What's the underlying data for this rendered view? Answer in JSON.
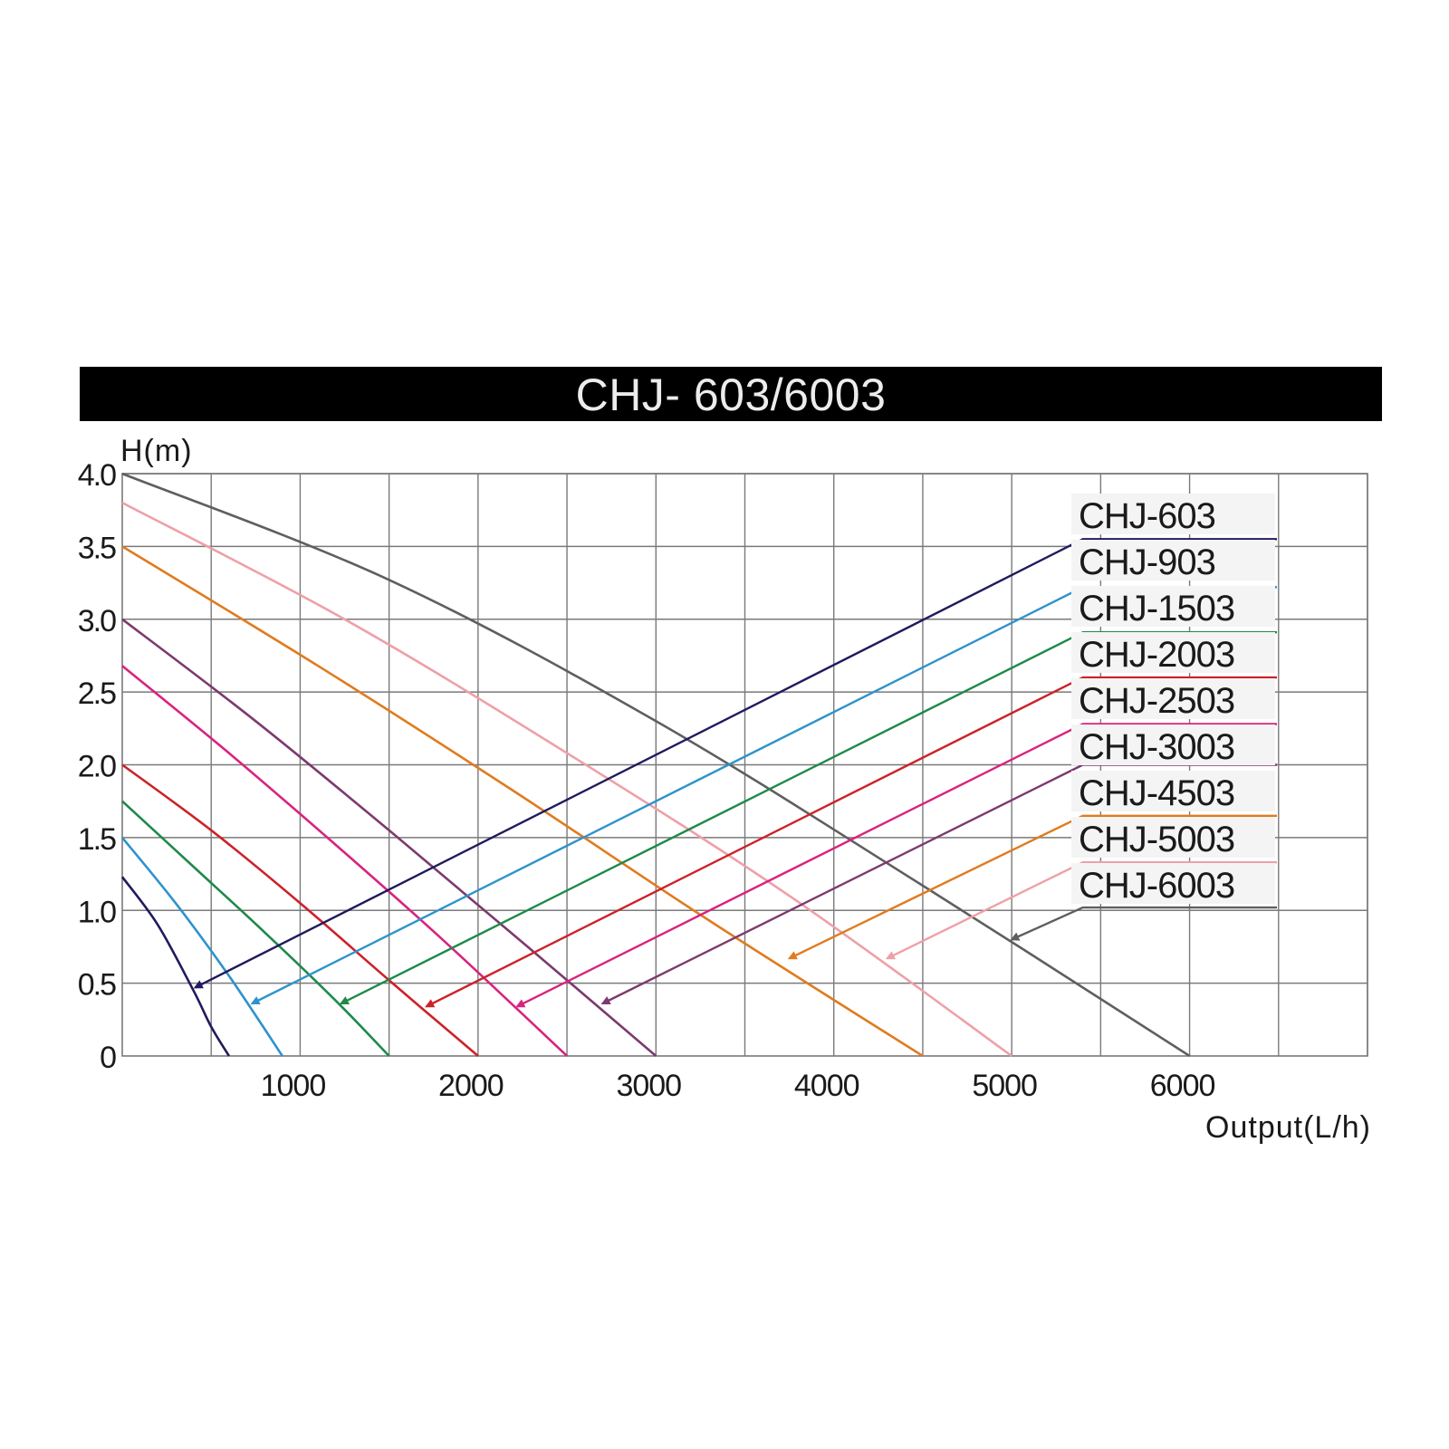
{
  "chart_data": {
    "type": "line",
    "title": "CHJ- 603/6003",
    "xlabel": "Output(L/h)",
    "ylabel": "H(m)",
    "xlim": [
      0,
      7000
    ],
    "ylim": [
      0,
      4.0
    ],
    "x_gridlines": [
      500,
      1000,
      1500,
      2000,
      2500,
      3000,
      3500,
      4000,
      4500,
      5000,
      5500,
      6000,
      6500,
      7000
    ],
    "y_gridlines": [
      0.5,
      1.0,
      1.5,
      2.0,
      2.5,
      3.0,
      3.5,
      4.0
    ],
    "x_tick_labels": [
      {
        "value": 1000,
        "label": "1000"
      },
      {
        "value": 2000,
        "label": "2000"
      },
      {
        "value": 3000,
        "label": "3000"
      },
      {
        "value": 4000,
        "label": "4000"
      },
      {
        "value": 5000,
        "label": "5000"
      },
      {
        "value": 6000,
        "label": "6000"
      }
    ],
    "y_tick_labels": [
      {
        "value": 0,
        "label": "0"
      },
      {
        "value": 0.5,
        "label": "0.5"
      },
      {
        "value": 1.0,
        "label": "1.0"
      },
      {
        "value": 1.5,
        "label": "1.5"
      },
      {
        "value": 2.0,
        "label": "2.0"
      },
      {
        "value": 2.5,
        "label": "2.5"
      },
      {
        "value": 3.0,
        "label": "3.0"
      },
      {
        "value": 3.5,
        "label": "3.5"
      },
      {
        "value": 4.0,
        "label": "4.0"
      }
    ],
    "grid": true,
    "legend_position": "right",
    "series": [
      {
        "name": "CHJ-603",
        "color": "#1f1b5e",
        "x": [
          0,
          200,
          400,
          500,
          600
        ],
        "y": [
          1.23,
          0.9,
          0.45,
          0.2,
          0
        ],
        "label_tip": [
          6500,
          3.55
        ],
        "label_elbow": [
          5400,
          3.55
        ],
        "arrow_tip": [
          410,
          0.47
        ]
      },
      {
        "name": "CHJ-903",
        "color": "#2e93cc",
        "x": [
          0,
          300,
          600,
          900
        ],
        "y": [
          1.5,
          1.05,
          0.55,
          0
        ],
        "label_tip": [
          6500,
          3.22
        ],
        "label_elbow": [
          5400,
          3.22
        ],
        "arrow_tip": [
          730,
          0.36
        ]
      },
      {
        "name": "CHJ-1503",
        "color": "#1e8a4a",
        "x": [
          0,
          400,
          800,
          1200,
          1500
        ],
        "y": [
          1.75,
          1.3,
          0.85,
          0.38,
          0
        ],
        "label_tip": [
          6500,
          2.91
        ],
        "label_elbow": [
          5400,
          2.91
        ],
        "arrow_tip": [
          1230,
          0.36
        ]
      },
      {
        "name": "CHJ-2003",
        "color": "#cc2229",
        "x": [
          0,
          500,
          1000,
          1500,
          2000
        ],
        "y": [
          2.0,
          1.55,
          1.05,
          0.52,
          0
        ],
        "label_tip": [
          6500,
          2.6
        ],
        "label_elbow": [
          5400,
          2.6
        ],
        "arrow_tip": [
          1710,
          0.34
        ]
      },
      {
        "name": "CHJ-2503",
        "color": "#d8237f",
        "x": [
          0,
          600,
          1200,
          1800,
          2500
        ],
        "y": [
          2.68,
          2.08,
          1.45,
          0.8,
          0
        ],
        "label_tip": [
          6500,
          2.28
        ],
        "label_elbow": [
          5400,
          2.28
        ],
        "arrow_tip": [
          2220,
          0.34
        ]
      },
      {
        "name": "CHJ-3003",
        "color": "#7c3a6e",
        "x": [
          0,
          750,
          1500,
          2250,
          3000
        ],
        "y": [
          3.0,
          2.3,
          1.55,
          0.78,
          0
        ],
        "label_tip": [
          6500,
          2.0
        ],
        "label_elbow": [
          5400,
          2.0
        ],
        "arrow_tip": [
          2700,
          0.36
        ]
      },
      {
        "name": "CHJ-4503",
        "color": "#e07b1f",
        "x": [
          0,
          1100,
          2200,
          3300,
          4500
        ],
        "y": [
          3.5,
          2.68,
          1.82,
          0.93,
          0
        ],
        "label_tip": [
          6500,
          1.65
        ],
        "label_elbow": [
          5400,
          1.65
        ],
        "arrow_tip": [
          3750,
          0.67
        ]
      },
      {
        "name": "CHJ-5003",
        "color": "#eea0a8",
        "x": [
          0,
          1250,
          2500,
          3750,
          5000
        ],
        "y": [
          3.8,
          3.0,
          2.08,
          1.1,
          0
        ],
        "label_tip": [
          6500,
          1.33
        ],
        "label_elbow": [
          5400,
          1.33
        ],
        "arrow_tip": [
          4300,
          0.67
        ]
      },
      {
        "name": "CHJ-6003",
        "color": "#5f5f5f",
        "x": [
          0,
          1500,
          3000,
          4500,
          6000
        ],
        "y": [
          4.0,
          3.27,
          2.3,
          1.17,
          0
        ],
        "label_tip": [
          6500,
          1.02
        ],
        "label_elbow": [
          5400,
          1.02
        ],
        "arrow_tip": [
          5000,
          0.8
        ]
      }
    ]
  }
}
